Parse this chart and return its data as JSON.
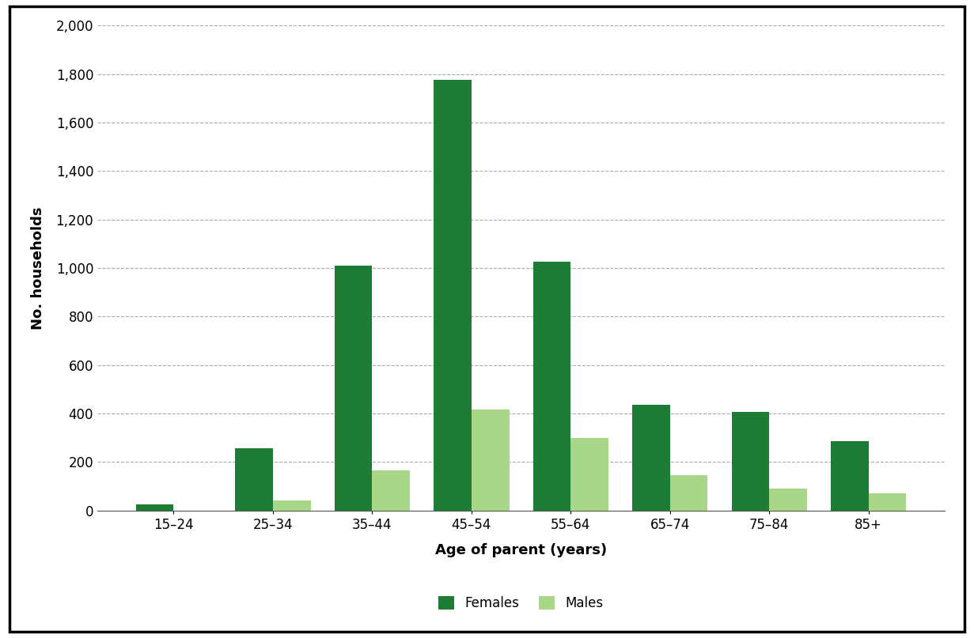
{
  "categories": [
    "15–24",
    "25–34",
    "35–44",
    "45–54",
    "55–64",
    "65–74",
    "75–84",
    "85+"
  ],
  "females": [
    25,
    255,
    1010,
    1775,
    1025,
    435,
    405,
    285
  ],
  "males": [
    0,
    40,
    165,
    415,
    300,
    145,
    90,
    70
  ],
  "female_color": "#1e7d34",
  "male_color": "#a8d887",
  "xlabel": "Age of parent (years)",
  "ylabel": "No. households",
  "ylim": [
    0,
    2000
  ],
  "yticks": [
    0,
    200,
    400,
    600,
    800,
    1000,
    1200,
    1400,
    1600,
    1800,
    2000
  ],
  "legend_labels": [
    "Females",
    "Males"
  ],
  "background_color": "#ffffff",
  "grid_color": "#aaaaaa",
  "bar_width": 0.38,
  "axis_fontsize": 13,
  "tick_fontsize": 12,
  "legend_fontsize": 12
}
